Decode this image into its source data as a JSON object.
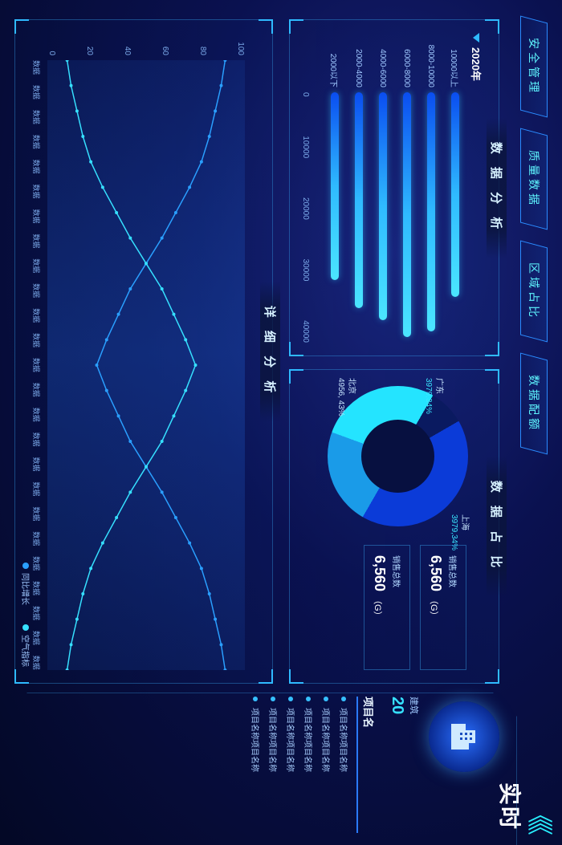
{
  "nav": {
    "items": [
      "安全管理",
      "质量数据",
      "区域占比",
      "数据配额"
    ]
  },
  "header": {
    "chevrons": "《《",
    "title": "实时"
  },
  "panel1": {
    "title": "数 据 分 析",
    "year": "2020年",
    "type": "bar-horizontal",
    "categories": [
      "10000以上",
      "8000-10000",
      "6000-8000",
      "4000-6000",
      "2000-4000",
      "2000以下"
    ],
    "values": [
      36000,
      42000,
      43000,
      40000,
      38000,
      33000
    ],
    "xticks": [
      "0",
      "10000",
      "20000",
      "30000",
      "40000"
    ],
    "xlim": [
      0,
      44000
    ],
    "bar_gradient": [
      "#0a4df0",
      "#2fbaff",
      "#4be6ff"
    ],
    "label_color": "#9fc8ff",
    "label_fontsize": 10
  },
  "panel2": {
    "title": "数 据 占 比",
    "type": "donut",
    "segments": [
      {
        "label": "上海",
        "value": 3979,
        "pct": "34%",
        "color": "#0b3bd8"
      },
      {
        "label": "广东",
        "value": 3979,
        "pct": "34%",
        "color": "#1a9be8"
      },
      {
        "label": "北京",
        "value": 4956,
        "pct": "43%",
        "color": "#24e4ff"
      },
      {
        "label": "",
        "value": 800,
        "pct": "",
        "color": "#0a1a60"
      }
    ],
    "kpis": [
      {
        "label": "销售总数",
        "value": "6,560",
        "unit": "（G）"
      },
      {
        "label": "销售总数",
        "value": "6,560",
        "unit": "（G）"
      }
    ]
  },
  "right": {
    "building_icon": "building-icon",
    "sub": "建筑",
    "num": "20",
    "list_title": "项目名",
    "items": [
      "项目名称项目名称",
      "项目名称项目名称",
      "项目名称项目名称",
      "项目名称项目名称",
      "项目名称项目名称",
      "项目名称项目名称"
    ]
  },
  "panel3": {
    "title": "详 细 分 析",
    "type": "line",
    "yticks": [
      "100",
      "80",
      "60",
      "40",
      "20",
      "0"
    ],
    "ylim": [
      0,
      100
    ],
    "x_count": 25,
    "x_label": "数据",
    "series": [
      {
        "name": "同比增长",
        "color": "#2a9fff",
        "values": [
          90,
          88,
          85,
          82,
          78,
          72,
          65,
          58,
          50,
          42,
          36,
          30,
          25,
          30,
          36,
          42,
          50,
          58,
          65,
          72,
          78,
          82,
          85,
          88,
          90
        ]
      },
      {
        "name": "空气指标",
        "color": "#36e0ff",
        "values": [
          10,
          12,
          15,
          18,
          22,
          28,
          35,
          42,
          50,
          58,
          64,
          70,
          75,
          70,
          64,
          58,
          50,
          42,
          35,
          28,
          22,
          18,
          15,
          12,
          10
        ]
      }
    ],
    "bg_gradient": [
      "rgba(30,90,200,.15)",
      "rgba(30,90,200,.35)",
      "rgba(30,90,200,.15)"
    ],
    "line_width": 1.5,
    "marker_radius": 2
  },
  "colors": {
    "accent": "#2fbaff",
    "text_dim": "#9fc8ff"
  }
}
